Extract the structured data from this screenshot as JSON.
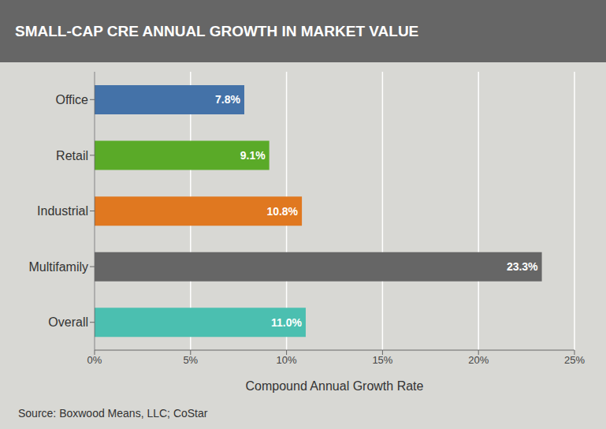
{
  "chart_data": {
    "type": "bar",
    "orientation": "horizontal",
    "title": "SMALL-CAP CRE ANNUAL GROWTH IN MARKET VALUE",
    "categories": [
      "Overall",
      "Multifamily",
      "Industrial",
      "Retail",
      "Office"
    ],
    "values": [
      11.0,
      23.3,
      10.8,
      9.1,
      7.8
    ],
    "value_labels": [
      "11.0%",
      "23.3%",
      "10.8%",
      "9.1%",
      "7.8%"
    ],
    "colors": [
      "#4bbfb0",
      "#666666",
      "#e07820",
      "#5aaa28",
      "#4472a8"
    ],
    "xlabel": "Compound Annual Growth Rate",
    "xlim": [
      0,
      25
    ],
    "xticks": [
      {
        "value": 0,
        "label": "0%"
      },
      {
        "value": 5,
        "label": "5%"
      },
      {
        "value": 10,
        "label": "10%"
      },
      {
        "value": 15,
        "label": "15%"
      },
      {
        "value": 20,
        "label": "20%"
      },
      {
        "value": 25,
        "label": "25%"
      }
    ],
    "grid": true,
    "data_labels": true,
    "annotations": [
      "Source: Boxwood Means, LLC; CoStar"
    ]
  }
}
